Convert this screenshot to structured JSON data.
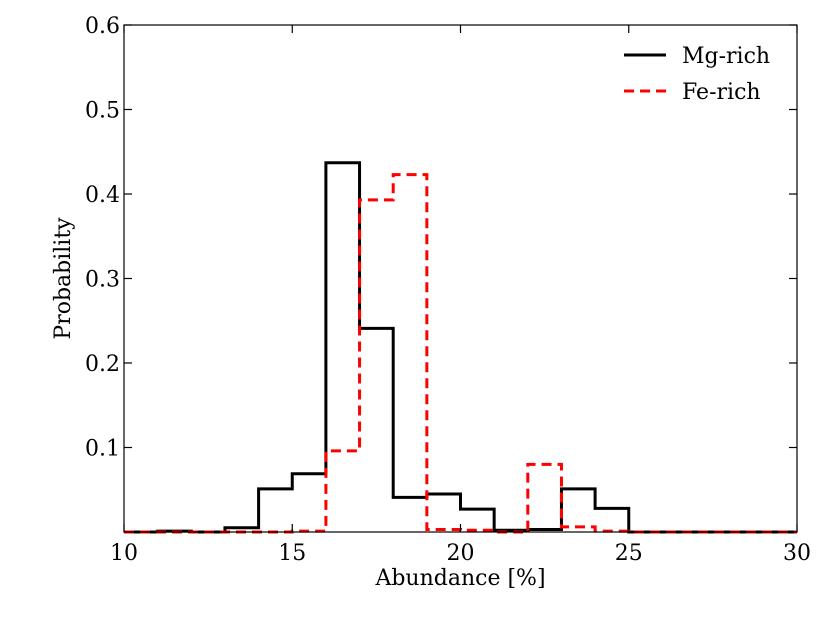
{
  "chart_data": {
    "type": "histogram",
    "title": "",
    "xlabel": "Abundance [%]",
    "ylabel": "Probability",
    "xlim": [
      10,
      30
    ],
    "ylim": [
      0,
      0.6
    ],
    "xticks": [
      "10",
      "15",
      "20",
      "25",
      "30"
    ],
    "yticks": [
      "0.1",
      "0.2",
      "0.3",
      "0.4",
      "0.5",
      "0.6"
    ],
    "bin_edges": [
      10,
      11,
      12,
      13,
      14,
      15,
      16,
      17,
      18,
      19,
      20,
      21,
      22,
      23,
      24,
      25,
      26,
      27,
      28,
      29,
      30
    ],
    "series": [
      {
        "name": "Mg-rich",
        "color": "#000000",
        "style": "solid",
        "values": [
          0,
          0.001,
          0,
          0.005,
          0.051,
          0.069,
          0.437,
          0.241,
          0.041,
          0.045,
          0.027,
          0.002,
          0.003,
          0.051,
          0.028,
          0,
          0,
          0,
          0,
          0
        ]
      },
      {
        "name": "Fe-rich",
        "color": "#ff0000",
        "style": "dashed",
        "values": [
          0,
          0,
          0,
          0,
          0,
          0.001,
          0.096,
          0.393,
          0.423,
          0.003,
          0.002,
          0,
          0.08,
          0.006,
          0.001,
          0,
          0,
          0,
          0,
          0
        ]
      }
    ],
    "legend": {
      "position": "top-right"
    }
  }
}
